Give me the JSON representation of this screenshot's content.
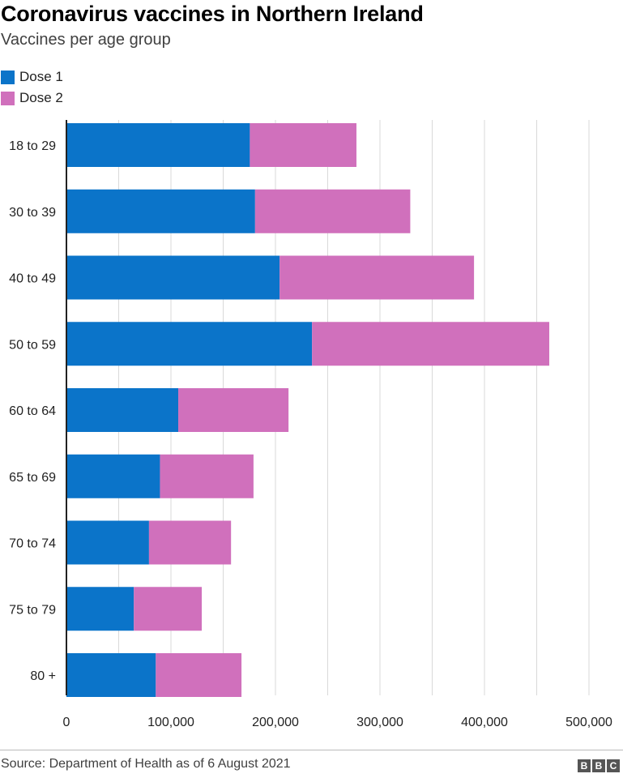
{
  "title": "Coronavirus vaccines in Northern Ireland",
  "subtitle": "Vaccines per age group",
  "source": "Source: Department of Health as of 6 August 2021",
  "logo": [
    "B",
    "B",
    "C"
  ],
  "colors": {
    "dose1": "#0b74c9",
    "dose2": "#d070bc",
    "grid": "#d9d9d9",
    "axis": "#222222"
  },
  "chart_data": {
    "type": "bar",
    "orientation": "horizontal",
    "stacked": true,
    "title": "Coronavirus vaccines in Northern Ireland",
    "subtitle": "Vaccines per age group",
    "categories": [
      "18 to 29",
      "30 to 39",
      "40 to 49",
      "50 to 59",
      "60 to 64",
      "65 to 69",
      "70 to 74",
      "75 to 79",
      "80 +"
    ],
    "series": [
      {
        "name": "Dose 1",
        "color": "#0b74c9",
        "values": [
          175500,
          180500,
          204000,
          235000,
          107000,
          89500,
          79000,
          64500,
          85500
        ]
      },
      {
        "name": "Dose 2",
        "color": "#d070bc",
        "values": [
          102000,
          148500,
          186000,
          227000,
          105500,
          89500,
          78500,
          65000,
          82000
        ]
      }
    ],
    "xlim": [
      0,
      540000
    ],
    "xticks": [
      0,
      100000,
      200000,
      300000,
      400000,
      500000
    ],
    "xtick_labels": [
      "0",
      "100,000",
      "200,000",
      "300,000",
      "400,000",
      "500,000"
    ],
    "grid": true,
    "legend_position": "top-left",
    "xlabel": "",
    "ylabel": ""
  }
}
